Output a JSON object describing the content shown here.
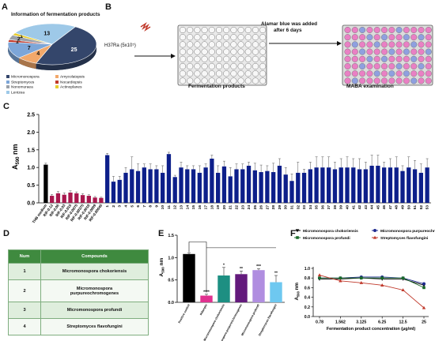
{
  "panels": {
    "a": "A",
    "b": "B",
    "c": "C",
    "d": "D",
    "e": "E",
    "f": "F"
  },
  "panel_a": {
    "title": "Information of fermentation products",
    "legend": [
      {
        "label": "Micromonospora",
        "color": "#34466b"
      },
      {
        "label": "Amycolatopsis",
        "color": "#f2a86a"
      },
      {
        "label": "Streptomyces",
        "color": "#7da6d8"
      },
      {
        "label": "Nocardiopsis",
        "color": "#c0392b"
      },
      {
        "label": "Nonomuraea",
        "color": "#9aa0a8"
      },
      {
        "label": "Actinoplanes",
        "color": "#e7cc2e"
      },
      {
        "label": "Lentzea",
        "color": "#9ec9e8"
      }
    ]
  },
  "panel_b": {
    "strain": "H37Ra (5x10⁵)",
    "step1": "Fermentation products",
    "arrow_text_1": "Alamar blue was added",
    "arrow_text_2": "after 6 days",
    "step2": "MABA examination"
  },
  "panel_d": {
    "headers": [
      "Num",
      "Compounds"
    ],
    "rows": [
      {
        "num": "1",
        "name": "Micromonospora chokoriensis"
      },
      {
        "num": "2",
        "name": "Micromonospora purpureochromogenes"
      },
      {
        "num": "3",
        "name": "Micromonospora profundi"
      },
      {
        "num": "4",
        "name": "Streptomyces flavofungini"
      }
    ]
  },
  "chart_data": [
    {
      "type": "pie",
      "panel": "A",
      "title": "Information of fermentation products",
      "slices": [
        {
          "label": "Micromonospora",
          "value": 25,
          "color": "#34466b"
        },
        {
          "label": "Amycolatopsis",
          "value": 4,
          "color": "#f2a86a"
        },
        {
          "label": "Streptomyces",
          "value": 7,
          "color": "#7da6d8"
        },
        {
          "label": "Nocardiopsis",
          "value": 1,
          "color": "#c0392b"
        },
        {
          "label": "Nonomuraea",
          "value": 2,
          "color": "#9aa0a8"
        },
        {
          "label": "Actinoplanes",
          "value": 1,
          "color": "#e7cc2e"
        },
        {
          "label": "Lentzea",
          "value": 13,
          "color": "#9ec9e8"
        }
      ]
    },
    {
      "type": "bar",
      "panel": "C",
      "ylabel": "A",
      "ylabel_sub": "590",
      "ylabel_unit": " nm",
      "ylim": [
        0,
        2.5
      ],
      "yticks": [
        "0.0",
        "0.5",
        "1.0",
        "1.5",
        "2.0",
        "2.5"
      ],
      "categories": [
        "THB medium",
        "RIF-0.12",
        "RIF-0.06",
        "RIF-0.03",
        "RIF-0.015",
        "RIF-0.0075",
        "RIF-0.00375",
        "RIF-0.0018",
        "RIF-0.0009",
        "RIF-0.00045",
        "1",
        "2",
        "3",
        "4",
        "5",
        "6",
        "7",
        "8",
        "9",
        "10",
        "11",
        "12",
        "13",
        "14",
        "15",
        "16",
        "17",
        "18",
        "19",
        "20",
        "21",
        "22",
        "23",
        "24",
        "25",
        "26",
        "27",
        "28",
        "29",
        "30",
        "31",
        "32",
        "33",
        "34",
        "35",
        "36",
        "37",
        "38",
        "39",
        "40",
        "41",
        "42",
        "43",
        "44",
        "45",
        "46",
        "47",
        "48",
        "49",
        "50",
        "51",
        "52",
        "53"
      ],
      "values": [
        1.08,
        0.2,
        0.27,
        0.23,
        0.29,
        0.27,
        0.22,
        0.2,
        0.15,
        0.14,
        1.35,
        0.6,
        0.65,
        0.85,
        0.95,
        0.9,
        1.0,
        0.95,
        0.95,
        0.85,
        1.38,
        0.73,
        1.0,
        0.95,
        0.95,
        0.85,
        1.0,
        1.25,
        0.85,
        1.03,
        0.75,
        0.95,
        0.95,
        1.05,
        0.92,
        0.87,
        0.9,
        0.87,
        1.05,
        0.8,
        0.62,
        0.85,
        0.85,
        0.95,
        1.0,
        1.0,
        1.0,
        0.95,
        1.0,
        1.0,
        1.0,
        0.95,
        0.95,
        1.05,
        1.05,
        1.0,
        1.0,
        1.0,
        0.9,
        1.0,
        0.95,
        0.85,
        1.0
      ],
      "errors": [
        0.04,
        0.04,
        0.05,
        0.05,
        0.05,
        0.04,
        0.04,
        0.03,
        0.03,
        0.02,
        0.05,
        0.15,
        0.1,
        0.15,
        0.35,
        0.2,
        0.1,
        0.15,
        0.1,
        0.2,
        0.05,
        0.05,
        0.15,
        0.1,
        0.1,
        0.2,
        0.1,
        0.1,
        0.2,
        0.15,
        0.25,
        0.15,
        0.15,
        0.1,
        0.2,
        0.2,
        0.15,
        0.25,
        0.2,
        0.2,
        0.2,
        0.3,
        0.1,
        0.2,
        0.3,
        0.3,
        0.3,
        0.2,
        0.25,
        0.3,
        0.25,
        0.3,
        0.2,
        0.3,
        0.3,
        0.15,
        0.25,
        0.3,
        0.15,
        0.3,
        0.25,
        0.25,
        0.25
      ],
      "colors": {
        "control": "#000000",
        "rif": "#a8174d",
        "sample": "#0d1f8a"
      }
    },
    {
      "type": "bar",
      "panel": "E",
      "ylabel": "A",
      "ylabel_sub": "590",
      "ylabel_unit": " nm",
      "ylim": [
        0,
        1.5
      ],
      "yticks": [
        "0.0",
        "0.5",
        "1.0",
        "1.5"
      ],
      "categories": [
        "Positive control",
        "Rifampin",
        "Micromonospora chokoriensis",
        "Micromonospora purpureochromogenes",
        "Micromonospora profundi",
        "Streptomyces flavofungini"
      ],
      "values": [
        1.08,
        0.15,
        0.6,
        0.63,
        0.72,
        0.45
      ],
      "errors": [
        0.03,
        0.03,
        0.18,
        0.07,
        0.03,
        0.15
      ],
      "significance": [
        "",
        "****",
        "*",
        "**",
        "***",
        "**"
      ],
      "colors": [
        "#000000",
        "#e0318f",
        "#1d8f82",
        "#631a7c",
        "#b08ee0",
        "#6ec8f0"
      ]
    },
    {
      "type": "line",
      "panel": "F",
      "xlabel": "Fermentation product concentration (μg/ml)",
      "ylabel": "A",
      "ylabel_sub": "590",
      "ylabel_unit": " nm",
      "ylim": [
        0,
        1.0
      ],
      "yticks": [
        "0.0",
        "0.2",
        "0.4",
        "0.6",
        "0.8",
        "1.0"
      ],
      "x": [
        "0.78",
        "1.562",
        "3.125",
        "6.25",
        "12.5",
        "25"
      ],
      "series": [
        {
          "name": "Micromonospora chokoriensis",
          "values": [
            0.78,
            0.78,
            0.8,
            0.78,
            0.78,
            0.65
          ],
          "color": "#000000",
          "marker": "tri-down"
        },
        {
          "name": "Micromonospora purpureochromogenes",
          "values": [
            0.8,
            0.8,
            0.82,
            0.82,
            0.8,
            0.68
          ],
          "color": "#1f2b8f",
          "marker": "circle"
        },
        {
          "name": "Micromonospora profundi",
          "values": [
            0.8,
            0.8,
            0.8,
            0.8,
            0.8,
            0.6
          ],
          "color": "#1a6a2a",
          "marker": "square"
        },
        {
          "name": "Streptomyces flavofungini",
          "values": [
            0.86,
            0.74,
            0.7,
            0.65,
            0.55,
            0.18
          ],
          "color": "#c0392b",
          "marker": "tri-up"
        }
      ]
    }
  ]
}
